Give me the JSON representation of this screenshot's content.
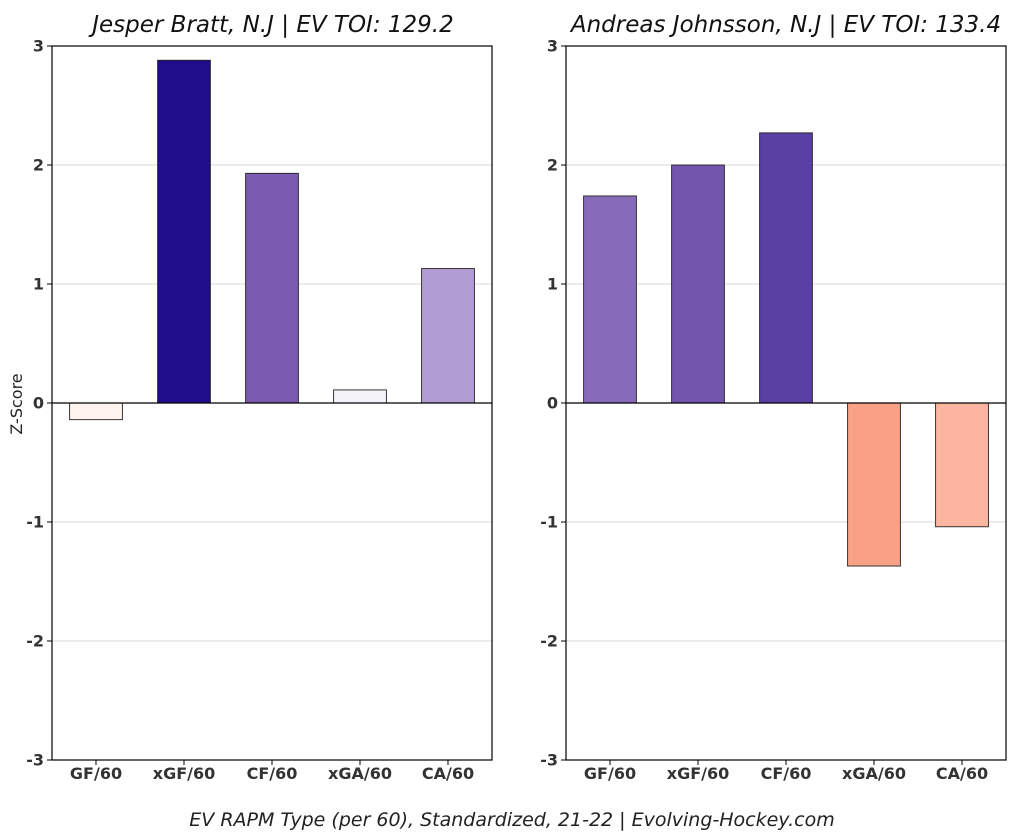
{
  "chart_data": [
    {
      "type": "bar",
      "title": "Jesper Bratt, N.J  |  EV TOI: 129.2",
      "ylabel": "Z-Score",
      "categories": [
        "GF/60",
        "xGF/60",
        "CF/60",
        "xGA/60",
        "CA/60"
      ],
      "values": [
        -0.14,
        2.88,
        1.93,
        0.11,
        1.13
      ],
      "colors": [
        "#fff4f0",
        "#1f0d8c",
        "#7a5bb0",
        "#f5f3fa",
        "#b19dd3"
      ],
      "ylim": [
        -3,
        3
      ],
      "yticks": [
        "-3",
        "-2",
        "-1",
        "0",
        "1",
        "2",
        "3"
      ],
      "grid": true
    },
    {
      "type": "bar",
      "title": "Andreas Johnsson, N.J  |  EV TOI: 133.4",
      "ylabel": "",
      "categories": [
        "GF/60",
        "xGF/60",
        "CF/60",
        "xGA/60",
        "CA/60"
      ],
      "values": [
        1.74,
        2.0,
        2.27,
        -1.37,
        -1.04
      ],
      "colors": [
        "#876bbb",
        "#7255ad",
        "#5a40a3",
        "#f9a186",
        "#fcb5a0"
      ],
      "ylim": [
        -3,
        3
      ],
      "yticks": [
        "-3",
        "-2",
        "-1",
        "0",
        "1",
        "2",
        "3"
      ],
      "grid": true
    }
  ],
  "caption": "EV RAPM Type (per 60), Standardized, 21-22    |    Evolving-Hockey.com"
}
